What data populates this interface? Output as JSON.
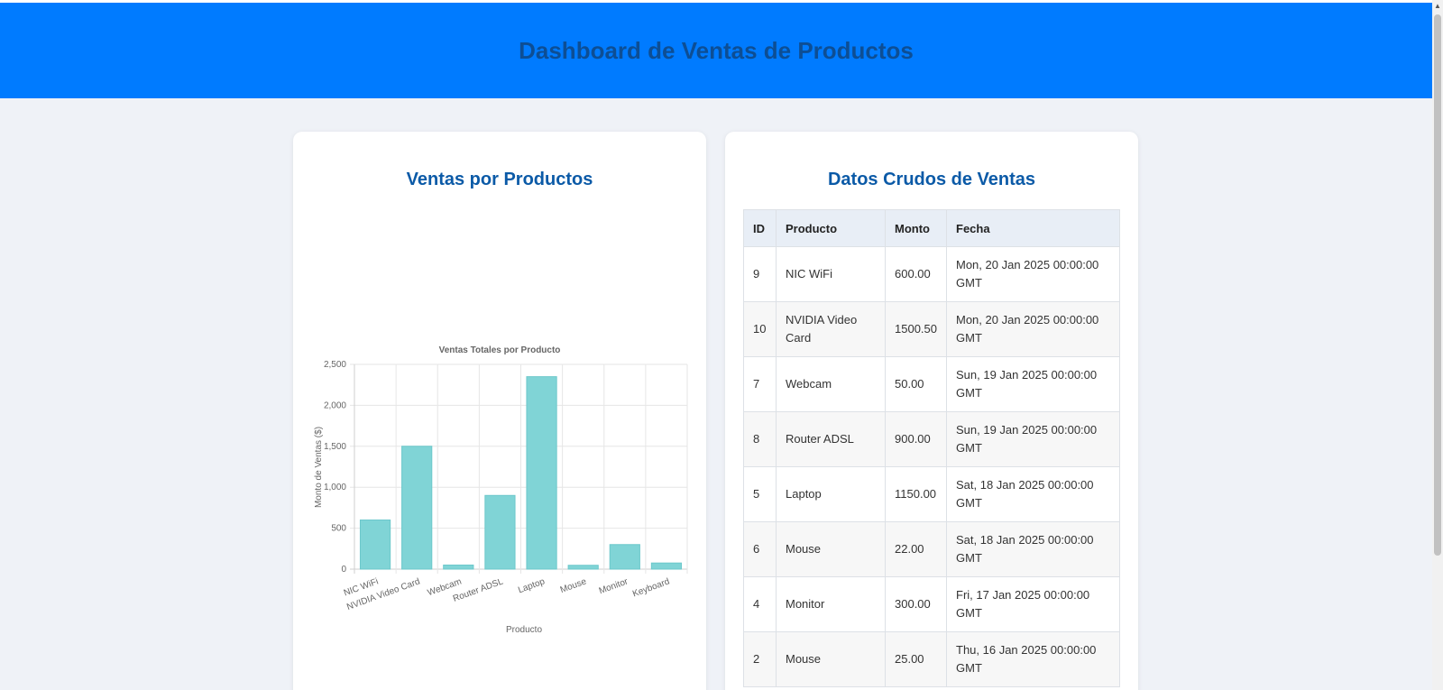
{
  "header": {
    "title": "Dashboard de Ventas de Productos"
  },
  "chart_card": {
    "title": "Ventas por Productos"
  },
  "chart_data": {
    "type": "bar",
    "title": "Ventas Totales por Producto",
    "xlabel": "Producto",
    "ylabel": "Monto de Ventas ($)",
    "ylim": [
      0,
      2500
    ],
    "yticks": [
      "0",
      "500",
      "1,000",
      "1,500",
      "2,000",
      "2,500"
    ],
    "categories": [
      "NIC WiFi",
      "NVIDIA Video Card",
      "Webcam",
      "Router ADSL",
      "Laptop",
      "Mouse",
      "Monitor",
      "Keyboard"
    ],
    "values": [
      600,
      1500.5,
      50,
      900,
      2350,
      47,
      300,
      75
    ],
    "bar_color": "#80d4d6",
    "bar_border": "#6cc8cb"
  },
  "table_card": {
    "title": "Datos Crudos de Ventas",
    "columns": [
      "ID",
      "Producto",
      "Monto",
      "Fecha"
    ],
    "rows": [
      {
        "id": "9",
        "producto": "NIC WiFi",
        "monto": "600.00",
        "fecha": "Mon, 20 Jan 2025 00:00:00 GMT"
      },
      {
        "id": "10",
        "producto": "NVIDIA Video Card",
        "monto": "1500.50",
        "fecha": "Mon, 20 Jan 2025 00:00:00 GMT"
      },
      {
        "id": "7",
        "producto": "Webcam",
        "monto": "50.00",
        "fecha": "Sun, 19 Jan 2025 00:00:00 GMT"
      },
      {
        "id": "8",
        "producto": "Router ADSL",
        "monto": "900.00",
        "fecha": "Sun, 19 Jan 2025 00:00:00 GMT"
      },
      {
        "id": "5",
        "producto": "Laptop",
        "monto": "1150.00",
        "fecha": "Sat, 18 Jan 2025 00:00:00 GMT"
      },
      {
        "id": "6",
        "producto": "Mouse",
        "monto": "22.00",
        "fecha": "Sat, 18 Jan 2025 00:00:00 GMT"
      },
      {
        "id": "4",
        "producto": "Monitor",
        "monto": "300.00",
        "fecha": "Fri, 17 Jan 2025 00:00:00 GMT"
      },
      {
        "id": "2",
        "producto": "Mouse",
        "monto": "25.00",
        "fecha": "Thu, 16 Jan 2025 00:00:00 GMT"
      }
    ]
  },
  "colors": {
    "header_bg": "#007bff",
    "heading": "#0b5aa7",
    "page_bg": "#eff2f7"
  }
}
